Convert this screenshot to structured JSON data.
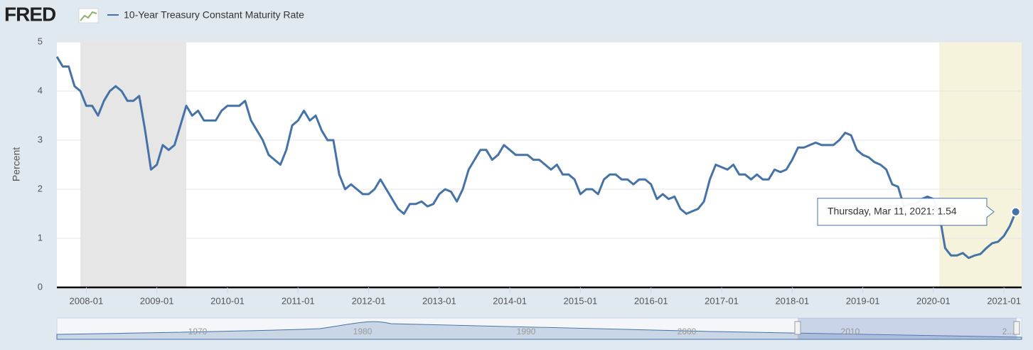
{
  "chart_data": {
    "type": "line",
    "logo": "FRED",
    "ylabel": "Percent",
    "series": [
      {
        "name": "10-Year Treasury Constant Maturity Rate",
        "color": "#4572a7",
        "values": [
          4.7,
          4.5,
          4.5,
          4.1,
          4.0,
          3.7,
          3.7,
          3.5,
          3.8,
          4.0,
          4.1,
          4.0,
          3.8,
          3.8,
          3.9,
          3.2,
          2.4,
          2.5,
          2.9,
          2.8,
          2.9,
          3.3,
          3.7,
          3.5,
          3.6,
          3.4,
          3.4,
          3.4,
          3.6,
          3.7,
          3.7,
          3.7,
          3.8,
          3.4,
          3.2,
          3.0,
          2.7,
          2.6,
          2.5,
          2.8,
          3.3,
          3.4,
          3.6,
          3.4,
          3.5,
          3.2,
          3.0,
          3.0,
          2.3,
          2.0,
          2.1,
          2.0,
          1.9,
          1.9,
          2.0,
          2.2,
          2.0,
          1.8,
          1.6,
          1.5,
          1.7,
          1.7,
          1.75,
          1.65,
          1.7,
          1.9,
          2.0,
          1.95,
          1.75,
          2.0,
          2.4,
          2.6,
          2.8,
          2.8,
          2.6,
          2.7,
          2.9,
          2.8,
          2.7,
          2.7,
          2.7,
          2.6,
          2.6,
          2.5,
          2.4,
          2.5,
          2.3,
          2.3,
          2.2,
          1.9,
          2.0,
          2.0,
          1.9,
          2.2,
          2.3,
          2.3,
          2.2,
          2.2,
          2.1,
          2.2,
          2.2,
          2.1,
          1.8,
          1.9,
          1.8,
          1.85,
          1.6,
          1.5,
          1.55,
          1.6,
          1.75,
          2.2,
          2.5,
          2.45,
          2.4,
          2.5,
          2.3,
          2.3,
          2.2,
          2.3,
          2.2,
          2.2,
          2.4,
          2.35,
          2.4,
          2.6,
          2.85,
          2.85,
          2.9,
          2.95,
          2.9,
          2.9,
          2.9,
          3.0,
          3.15,
          3.1,
          2.8,
          2.7,
          2.65,
          2.55,
          2.5,
          2.4,
          2.1,
          2.05,
          1.65,
          1.7,
          1.7,
          1.8,
          1.85,
          1.8,
          1.5,
          0.8,
          0.65,
          0.65,
          0.7,
          0.6,
          0.65,
          0.68,
          0.8,
          0.9,
          0.93,
          1.05,
          1.25,
          1.54
        ]
      }
    ],
    "x": [
      "2007-08",
      "2007-09",
      "2007-10",
      "2007-11",
      "2007-12",
      "2008-01",
      "2008-02",
      "2008-03",
      "2008-04",
      "2008-05",
      "2008-06",
      "2008-07",
      "2008-08",
      "2008-09",
      "2008-10",
      "2008-11",
      "2008-12",
      "2009-01",
      "2009-02",
      "2009-03",
      "2009-04",
      "2009-05",
      "2009-06",
      "2009-07",
      "2009-08",
      "2009-09",
      "2009-10",
      "2009-11",
      "2009-12",
      "2010-01",
      "2010-02",
      "2010-03",
      "2010-04",
      "2010-05",
      "2010-06",
      "2010-07",
      "2010-08",
      "2010-09",
      "2010-10",
      "2010-11",
      "2010-12",
      "2011-01",
      "2011-02",
      "2011-03",
      "2011-04",
      "2011-05",
      "2011-06",
      "2011-07",
      "2011-08",
      "2011-09",
      "2011-10",
      "2011-11",
      "2011-12",
      "2012-01",
      "2012-02",
      "2012-03",
      "2012-04",
      "2012-05",
      "2012-06",
      "2012-07",
      "2012-08",
      "2012-09",
      "2012-10",
      "2012-11",
      "2012-12",
      "2013-01",
      "2013-02",
      "2013-03",
      "2013-04",
      "2013-05",
      "2013-06",
      "2013-07",
      "2013-08",
      "2013-09",
      "2013-10",
      "2013-11",
      "2013-12",
      "2014-01",
      "2014-02",
      "2014-03",
      "2014-04",
      "2014-05",
      "2014-06",
      "2014-07",
      "2014-08",
      "2014-09",
      "2014-10",
      "2014-11",
      "2014-12",
      "2015-01",
      "2015-02",
      "2015-03",
      "2015-04",
      "2015-05",
      "2015-06",
      "2015-07",
      "2015-08",
      "2015-09",
      "2015-10",
      "2015-11",
      "2015-12",
      "2016-01",
      "2016-02",
      "2016-03",
      "2016-04",
      "2016-05",
      "2016-06",
      "2016-07",
      "2016-08",
      "2016-09",
      "2016-10",
      "2016-11",
      "2016-12",
      "2017-01",
      "2017-02",
      "2017-03",
      "2017-04",
      "2017-05",
      "2017-06",
      "2017-07",
      "2017-08",
      "2017-09",
      "2017-10",
      "2017-11",
      "2017-12",
      "2018-01",
      "2018-02",
      "2018-03",
      "2018-04",
      "2018-05",
      "2018-06",
      "2018-07",
      "2018-08",
      "2018-09",
      "2018-10",
      "2018-11",
      "2018-12",
      "2019-01",
      "2019-02",
      "2019-03",
      "2019-04",
      "2019-05",
      "2019-06",
      "2019-07",
      "2019-08",
      "2019-09",
      "2019-10",
      "2019-11",
      "2019-12",
      "2020-01",
      "2020-02",
      "2020-03",
      "2020-04",
      "2020-05",
      "2020-06",
      "2020-07",
      "2020-08",
      "2020-09",
      "2020-10",
      "2020-11",
      "2020-12",
      "2021-01",
      "2021-02",
      "2021-03"
    ],
    "xlim": [
      "2007-08",
      "2021-04"
    ],
    "xticks": [
      "2008-01",
      "2009-01",
      "2010-01",
      "2011-01",
      "2012-01",
      "2013-01",
      "2014-01",
      "2015-01",
      "2016-01",
      "2017-01",
      "2018-01",
      "2019-01",
      "2020-01",
      "2021-01"
    ],
    "ylim": [
      0,
      5
    ],
    "yticks": [
      0,
      1,
      2,
      3,
      4,
      5
    ],
    "grid": true,
    "shading": [
      {
        "start": "2007-12",
        "end": "2009-06",
        "color": "#e6e6e6"
      },
      {
        "start": "2020-02",
        "end": "2021-04",
        "color": "#f5f3dc"
      }
    ],
    "tooltip": {
      "label": "Thursday, Mar 11, 2021:",
      "value": 1.54
    },
    "navigator": {
      "labels": [
        "1970",
        "1980",
        "1990",
        "2000",
        "2010",
        "2..."
      ]
    }
  }
}
